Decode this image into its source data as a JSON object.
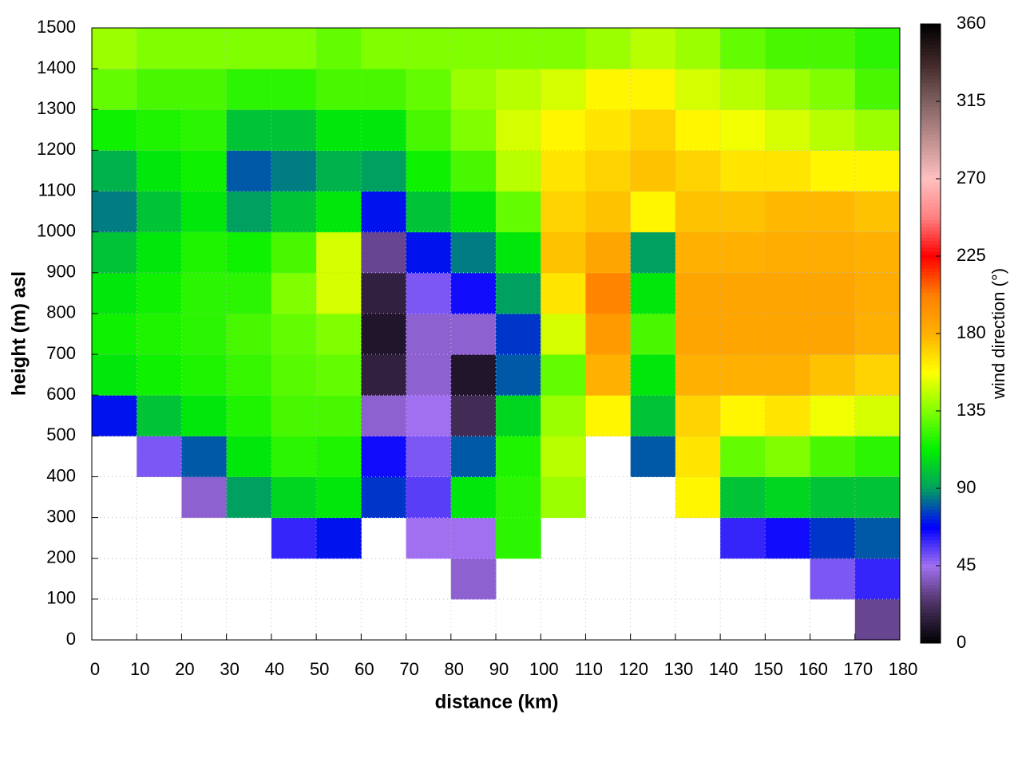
{
  "chart_data": {
    "type": "heatmap",
    "xlabel": "distance (km)",
    "ylabel": "height (m) asl",
    "zlabel": "wind direction (°)",
    "xlim": [
      0,
      180
    ],
    "xticks": [
      0,
      10,
      20,
      30,
      40,
      50,
      60,
      70,
      80,
      90,
      100,
      110,
      120,
      130,
      140,
      150,
      160,
      170,
      180
    ],
    "ylim": [
      0,
      1500
    ],
    "yticks": [
      0,
      100,
      200,
      300,
      400,
      500,
      600,
      700,
      800,
      900,
      1000,
      1100,
      1200,
      1300,
      1400,
      1500
    ],
    "zlim": [
      0,
      360
    ],
    "zticks": [
      0,
      45,
      90,
      135,
      180,
      225,
      270,
      315,
      360
    ],
    "grid": true,
    "colormap": [
      "#000000",
      "#4a3060",
      "#a070f0",
      "#0000ff",
      "#00a060",
      "#00f000",
      "#80ff00",
      "#ffff00",
      "#ffb000",
      "#ff8000",
      "#ff0000",
      "#ff8080",
      "#ffc0c0",
      "#c09090",
      "#806060",
      "#402828",
      "#000000"
    ],
    "x_bins": [
      0,
      10,
      20,
      30,
      40,
      50,
      60,
      70,
      80,
      90,
      100,
      110,
      120,
      130,
      140,
      150,
      160,
      170,
      180
    ],
    "y_bins": [
      0,
      100,
      200,
      300,
      400,
      500,
      600,
      700,
      800,
      900,
      1000,
      1100,
      1200,
      1300,
      1400,
      1500
    ],
    "z": [
      [
        null,
        null,
        null,
        null,
        null,
        null,
        null,
        null,
        null,
        null,
        null,
        null,
        null,
        null,
        null,
        null,
        null,
        30
      ],
      [
        null,
        null,
        null,
        null,
        null,
        null,
        null,
        null,
        40,
        null,
        null,
        null,
        null,
        null,
        null,
        null,
        50,
        60
      ],
      [
        null,
        null,
        null,
        null,
        60,
        70,
        null,
        45,
        45,
        120,
        null,
        null,
        null,
        null,
        60,
        65,
        75,
        80
      ],
      [
        null,
        null,
        40,
        90,
        105,
        110,
        75,
        55,
        110,
        120,
        140,
        null,
        null,
        160,
        100,
        105,
        100,
        100
      ],
      [
        null,
        50,
        80,
        110,
        120,
        118,
        65,
        50,
        80,
        118,
        145,
        null,
        80,
        165,
        130,
        135,
        125,
        120
      ],
      [
        70,
        100,
        110,
        118,
        125,
        125,
        40,
        45,
        20,
        105,
        140,
        160,
        100,
        170,
        160,
        165,
        155,
        150
      ],
      [
        110,
        115,
        118,
        122,
        128,
        130,
        15,
        40,
        10,
        80,
        130,
        180,
        110,
        180,
        180,
        180,
        175,
        170
      ],
      [
        115,
        118,
        120,
        125,
        130,
        135,
        10,
        40,
        40,
        75,
        150,
        190,
        125,
        185,
        185,
        185,
        185,
        180
      ],
      [
        110,
        115,
        120,
        120,
        135,
        150,
        15,
        50,
        65,
        90,
        165,
        200,
        110,
        185,
        185,
        185,
        185,
        182
      ],
      [
        100,
        110,
        118,
        115,
        125,
        150,
        30,
        70,
        85,
        110,
        175,
        185,
        90,
        180,
        180,
        182,
        182,
        180
      ],
      [
        85,
        100,
        110,
        90,
        100,
        110,
        70,
        100,
        110,
        130,
        170,
        175,
        160,
        175,
        175,
        178,
        178,
        175
      ],
      [
        95,
        110,
        115,
        80,
        85,
        95,
        90,
        115,
        125,
        145,
        165,
        170,
        175,
        170,
        165,
        165,
        160,
        160
      ],
      [
        115,
        118,
        120,
        100,
        100,
        110,
        110,
        125,
        135,
        150,
        160,
        165,
        170,
        160,
        155,
        150,
        145,
        140
      ],
      [
        130,
        125,
        125,
        120,
        120,
        125,
        125,
        130,
        140,
        145,
        150,
        160,
        160,
        150,
        145,
        140,
        135,
        125
      ],
      [
        140,
        135,
        135,
        135,
        135,
        130,
        135,
        135,
        135,
        135,
        135,
        140,
        145,
        140,
        130,
        125,
        125,
        120
      ]
    ]
  }
}
